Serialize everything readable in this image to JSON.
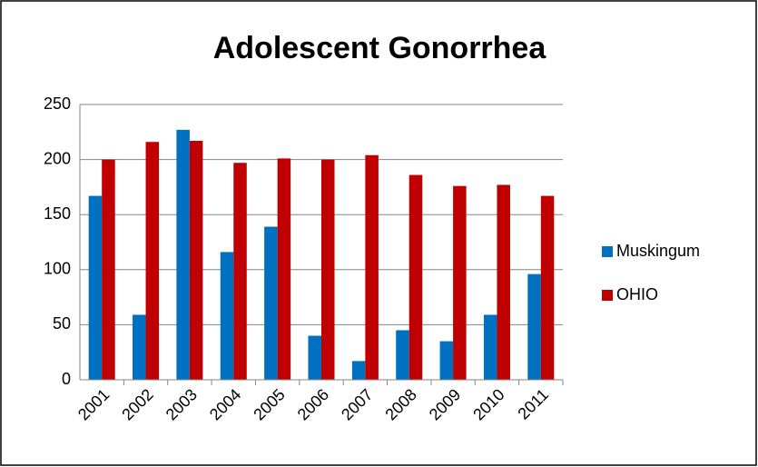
{
  "chart_data": {
    "type": "bar",
    "title": "Adolescent Gonorrhea",
    "categories": [
      "2001",
      "2002",
      "2003",
      "2004",
      "2005",
      "2006",
      "2007",
      "2008",
      "2009",
      "2010",
      "2011"
    ],
    "series": [
      {
        "name": "Muskingum",
        "color": "#0070c0",
        "values": [
          167,
          59,
          227,
          116,
          139,
          40,
          17,
          45,
          35,
          59,
          96
        ]
      },
      {
        "name": "OHIO",
        "color": "#c00000",
        "values": [
          200,
          216,
          217,
          197,
          201,
          200,
          204,
          186,
          176,
          177,
          167
        ]
      }
    ],
    "ylim": [
      0,
      250
    ],
    "yticks": [
      0,
      50,
      100,
      150,
      200,
      250
    ],
    "grid": true,
    "legend": "right"
  }
}
